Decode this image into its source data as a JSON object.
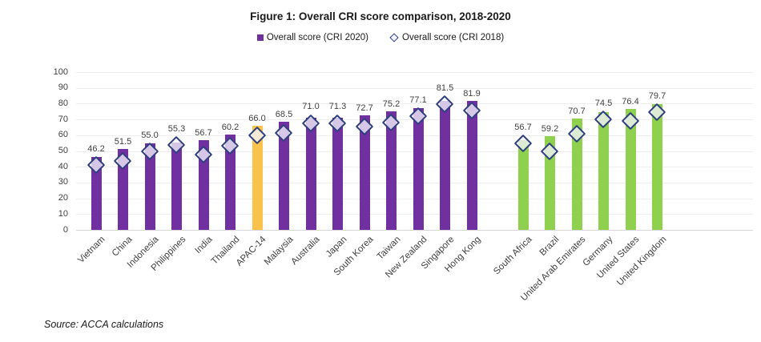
{
  "title": "Figure 1: Overall CRI score comparison, 2018-2020",
  "legend": {
    "items": [
      {
        "label": "Overall score (CRI 2020)",
        "marker": "square-icon",
        "color": "#7030A0"
      },
      {
        "label": "Overall score (CRI 2018)",
        "marker": "diamond-icon",
        "color": "#2E3F7F"
      }
    ]
  },
  "source": "Source: ACCA calculations",
  "colors": {
    "bar_purple": "#7030A0",
    "bar_orange": "#F9C24A",
    "bar_green": "#8FD04F",
    "diamond_border": "#2E3F7F",
    "diamond_fill": "rgba(243,242,251,0.78)",
    "gridline": "#eeeeee",
    "axis_line": "#d6d6d6",
    "text": "#3f3f3f"
  },
  "chart_data": {
    "type": "bar",
    "title": "Figure 1: Overall CRI score comparison, 2018-2020",
    "xlabel": "",
    "ylabel": "",
    "ylim": [
      0,
      100
    ],
    "yticks": [
      0,
      10,
      20,
      30,
      40,
      50,
      60,
      70,
      80,
      90,
      100
    ],
    "grid": "horizontal",
    "legend_position": "top-center",
    "categories": [
      "Vietnam",
      "China",
      "Indonesia",
      "Philippines",
      "India",
      "Thailand",
      "APAC-14",
      "Malaysia",
      "Australia",
      "Japan",
      "South Korea",
      "Taiwan",
      "New Zealand",
      "Singapore",
      "Hong Kong",
      "South Africa",
      "Brazil",
      "United Arab Emirates",
      "Germany",
      "United States",
      "United Kingdom"
    ],
    "series": [
      {
        "name": "Overall score (CRI 2020)",
        "type": "bar",
        "values": [
          46.2,
          51.5,
          55.0,
          55.3,
          56.7,
          60.2,
          66.0,
          68.5,
          71.0,
          71.3,
          72.7,
          75.2,
          77.1,
          81.5,
          81.9,
          56.7,
          59.2,
          70.7,
          74.5,
          76.4,
          79.7
        ],
        "data_labels": [
          "46.2",
          "51.5",
          "55.0",
          "55.3",
          "56.7",
          "60.2",
          "66.0",
          "68.5",
          "71.0",
          "71.3",
          "72.7",
          "75.2",
          "77.1",
          "81.5",
          "81.9",
          "56.7",
          "59.2",
          "70.7",
          "74.5",
          "76.4",
          "79.7"
        ]
      },
      {
        "name": "Overall score (CRI 2018)",
        "type": "scatter-diamond",
        "note": "values estimated from marker positions; not labeled in figure",
        "values": [
          41.0,
          43.5,
          49.5,
          53.5,
          47.5,
          53.0,
          60.0,
          61.5,
          67.5,
          67.5,
          65.5,
          68.0,
          72.0,
          79.5,
          75.5,
          54.5,
          49.5,
          61.0,
          70.0,
          69.0,
          74.5
        ]
      }
    ],
    "bar_color_keys": [
      "bar_purple",
      "bar_purple",
      "bar_purple",
      "bar_purple",
      "bar_purple",
      "bar_purple",
      "bar_orange",
      "bar_purple",
      "bar_purple",
      "bar_purple",
      "bar_purple",
      "bar_purple",
      "bar_purple",
      "bar_purple",
      "bar_purple",
      "bar_green",
      "bar_green",
      "bar_green",
      "bar_green",
      "bar_green",
      "bar_green"
    ],
    "group_gap_after_index": 14
  }
}
